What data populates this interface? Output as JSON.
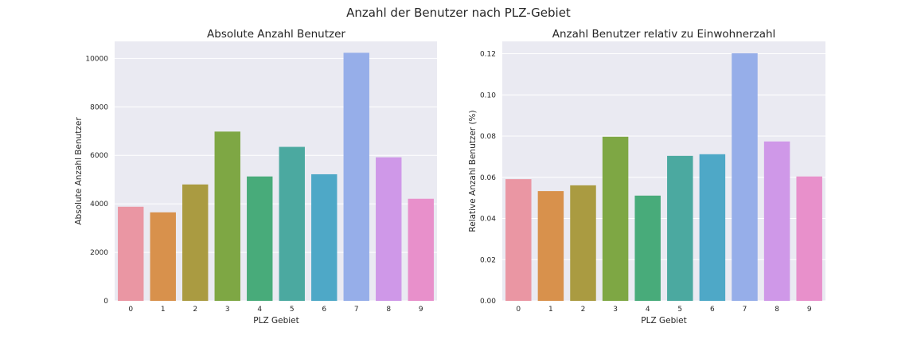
{
  "figure": {
    "suptitle": "Anzahl der Benutzer nach PLZ-Gebiet"
  },
  "colors": {
    "axes_bg": "#eaeaf2",
    "grid": "#ffffff",
    "bars": [
      "#ea96a3",
      "#d8914c",
      "#aa9b41",
      "#7ea744",
      "#48ab7a",
      "#4ba9a0",
      "#4ea8c7",
      "#96aee9",
      "#cf98e8",
      "#e890cb"
    ]
  },
  "chart_data": [
    {
      "type": "bar",
      "title": "Absolute Anzahl Benutzer",
      "xlabel": "PLZ Gebiet",
      "ylabel": "Absolute Anzahl Benutzer",
      "categories": [
        "0",
        "1",
        "2",
        "3",
        "4",
        "5",
        "6",
        "7",
        "8",
        "9"
      ],
      "values": [
        3880,
        3650,
        4800,
        6980,
        5130,
        6350,
        5220,
        10230,
        5920,
        4210
      ],
      "ylim": [
        0,
        10700
      ],
      "yticks": [
        0,
        2000,
        4000,
        6000,
        8000,
        10000
      ],
      "ytick_labels": [
        "0",
        "2000",
        "4000",
        "6000",
        "8000",
        "10000"
      ],
      "grid": true
    },
    {
      "type": "bar",
      "title": "Anzahl Benutzer relativ zu Einwohnerzahl",
      "xlabel": "PLZ Gebiet",
      "ylabel": "Relative Anzahl Benutzer (%)",
      "categories": [
        "0",
        "1",
        "2",
        "3",
        "4",
        "5",
        "6",
        "7",
        "8",
        "9"
      ],
      "values": [
        0.0591,
        0.0533,
        0.0561,
        0.0797,
        0.0511,
        0.0704,
        0.0712,
        0.1202,
        0.0774,
        0.0604
      ],
      "ylim": [
        0,
        0.126
      ],
      "yticks": [
        0,
        0.02,
        0.04,
        0.06,
        0.08,
        0.1,
        0.12
      ],
      "ytick_labels": [
        "0.00",
        "0.02",
        "0.04",
        "0.06",
        "0.08",
        "0.10",
        "0.12"
      ],
      "grid": true
    }
  ]
}
